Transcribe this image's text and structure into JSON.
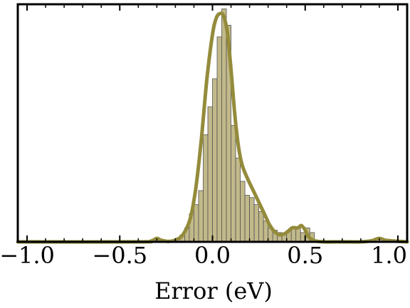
{
  "chart_data": {
    "type": "bar",
    "title": "",
    "xlabel": "Error (eV)",
    "ylabel": "",
    "xlim": [
      -1.05,
      1.05
    ],
    "ylim": [
      0,
      1.02
    ],
    "x_ticks": [
      {
        "value": -1.0,
        "label": "−1.0"
      },
      {
        "value": -0.5,
        "label": "−0.5"
      },
      {
        "value": 0.0,
        "label": "0.0"
      },
      {
        "value": 0.5,
        "label": "0.5"
      },
      {
        "value": 1.0,
        "label": "1.0"
      }
    ],
    "minor_tick_step": 0.1,
    "bin_width": 0.025,
    "histogram": {
      "bin_starts": [
        -0.175,
        -0.15,
        -0.125,
        -0.1,
        -0.075,
        -0.05,
        -0.025,
        0.0,
        0.025,
        0.05,
        0.075,
        0.1,
        0.125,
        0.15,
        0.175,
        0.2,
        0.225,
        0.25,
        0.275,
        0.3,
        0.325,
        0.35,
        0.375,
        0.4,
        0.425,
        0.45,
        0.475,
        0.5,
        0.525
      ],
      "values": [
        0.03,
        0.06,
        0.12,
        0.16,
        0.22,
        0.46,
        0.58,
        0.7,
        0.88,
        1.0,
        0.93,
        0.5,
        0.36,
        0.26,
        0.2,
        0.19,
        0.16,
        0.13,
        0.09,
        0.06,
        0.05,
        0.04,
        0.03,
        0.05,
        0.06,
        0.06,
        0.04,
        0.06,
        0.04
      ]
    },
    "density_curve": {
      "x": [
        -1.05,
        -0.4,
        -0.33,
        -0.3,
        -0.28,
        -0.24,
        -0.2,
        -0.16,
        -0.12,
        -0.09,
        -0.06,
        -0.03,
        0.0,
        0.02,
        0.04,
        0.06,
        0.08,
        0.1,
        0.12,
        0.14,
        0.16,
        0.19,
        0.22,
        0.25,
        0.28,
        0.31,
        0.34,
        0.37,
        0.4,
        0.43,
        0.46,
        0.48,
        0.5,
        0.52,
        0.55,
        0.6,
        0.7,
        0.8,
        0.86,
        0.9,
        0.94,
        1.05
      ],
      "y": [
        0.0,
        0.0,
        0.004,
        0.015,
        0.008,
        0.002,
        0.008,
        0.03,
        0.1,
        0.23,
        0.44,
        0.7,
        0.89,
        0.96,
        0.98,
        0.97,
        0.9,
        0.74,
        0.55,
        0.41,
        0.33,
        0.27,
        0.22,
        0.17,
        0.12,
        0.07,
        0.04,
        0.03,
        0.04,
        0.06,
        0.06,
        0.07,
        0.05,
        0.02,
        0.005,
        0.0,
        0.0,
        0.0,
        0.005,
        0.015,
        0.006,
        0.0
      ]
    },
    "grid": false,
    "legend": "none",
    "colors": {
      "bar_fill": "#c2b98a",
      "bar_stroke": "#555555",
      "curve": "#948b3b",
      "frame": "#000000"
    }
  }
}
